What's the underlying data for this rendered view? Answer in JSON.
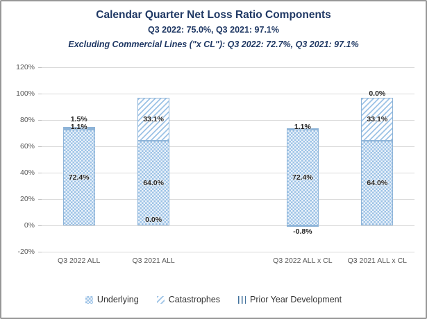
{
  "chart_data": {
    "type": "bar",
    "stacked": true,
    "title": "Calendar Quarter Net Loss Ratio Components",
    "subtitle": "Q3 2022: 75.0%, Q3 2021: 97.1%",
    "subtitle2": "Excluding Commercial Lines (\"x CL\"): Q3 2022: 72.7%, Q3 2021: 97.1%",
    "categories": [
      "Q3 2022 ALL",
      "Q3 2021 ALL",
      "Q3 2022 ALL x CL",
      "Q3 2021 ALL x CL"
    ],
    "series": [
      {
        "name": "Underlying",
        "pattern": "checker",
        "values": [
          72.4,
          64.0,
          72.4,
          64.0
        ]
      },
      {
        "name": "Catastrophes",
        "pattern": "diagonal",
        "values": [
          1.1,
          33.1,
          1.1,
          33.1
        ]
      },
      {
        "name": "Prior Year Development",
        "pattern": "vertical",
        "values": [
          1.5,
          0.0,
          -0.8,
          0.0
        ]
      }
    ],
    "bar_labels": [
      [
        {
          "text": "1.5%",
          "y": 80.5
        },
        {
          "text": "1.1%",
          "y": 74.5
        },
        {
          "text": "72.4%",
          "y": 36.5
        }
      ],
      [
        {
          "text": "33.1%",
          "y": 80.5
        },
        {
          "text": "64.0%",
          "y": 32
        },
        {
          "text": "0.0%",
          "y": 4
        }
      ],
      [
        {
          "text": "1.1%",
          "y": 74.5
        },
        {
          "text": "72.4%",
          "y": 36.5
        },
        {
          "text": "-0.8%",
          "y": -4.5
        }
      ],
      [
        {
          "text": "0.0%",
          "y": 100
        },
        {
          "text": "33.1%",
          "y": 80.5
        },
        {
          "text": "64.0%",
          "y": 32
        }
      ]
    ],
    "y_axis": {
      "min": -20,
      "max": 120,
      "step": 20,
      "tick_labels": [
        "120%",
        "100%",
        "80%",
        "60%",
        "40%",
        "20%",
        "0%",
        "-20%"
      ]
    },
    "legend": [
      "Underlying",
      "Catastrophes",
      "Prior Year Development"
    ],
    "colors": {
      "title": "#1F3864",
      "pattern_blue": "#9DC3E6",
      "pattern_dark": "#41719C",
      "gridline": "#D9D9D9",
      "axis_text": "#595959",
      "label_text": "#1F1F1F"
    }
  }
}
